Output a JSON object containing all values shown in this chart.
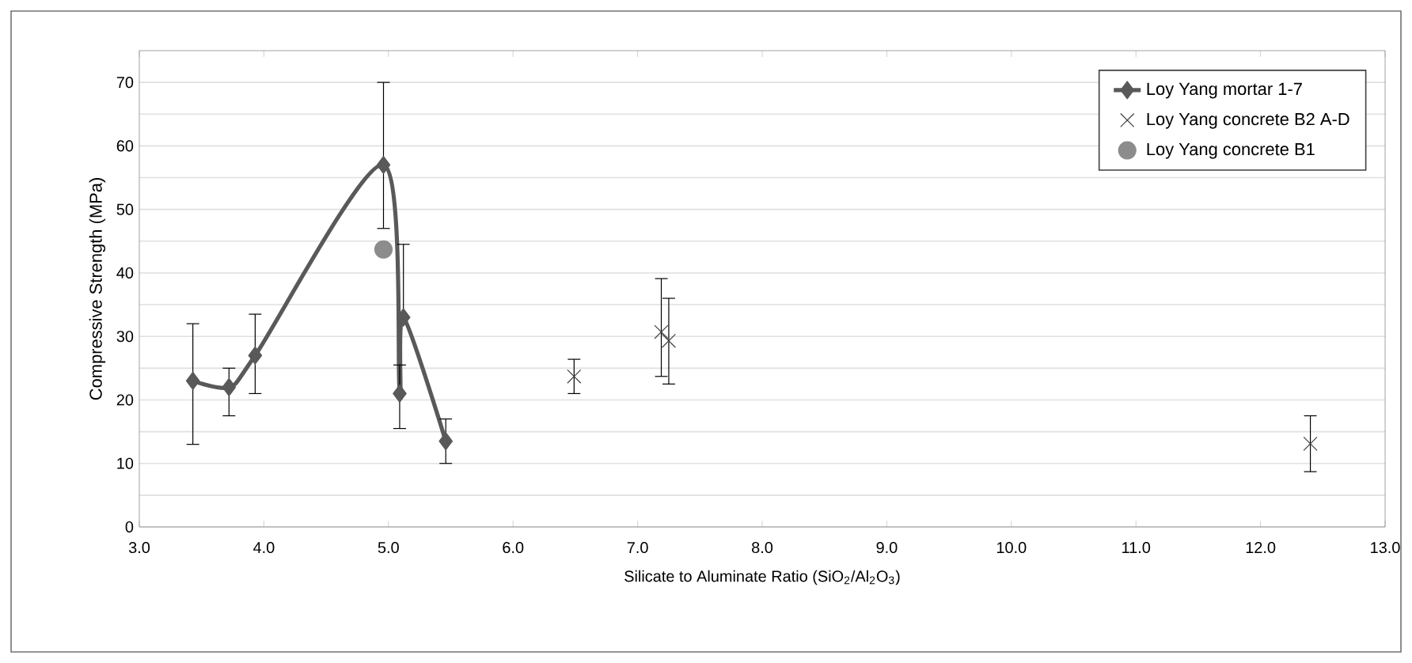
{
  "chart_data": {
    "type": "scatter",
    "xlabel": "Silicate to Aluminate Ratio (SiO$_{2}$/Al$_{2}$O$_{3}$)",
    "ylabel": "Compressive Strength (MPa)",
    "xlim": [
      3,
      13
    ],
    "ylim": [
      0,
      75
    ],
    "xticks": [
      {
        "value": 3,
        "label": "3.0"
      },
      {
        "value": 4,
        "label": "4.0"
      },
      {
        "value": 5,
        "label": "5.0"
      },
      {
        "value": 6,
        "label": "6.0"
      },
      {
        "value": 7,
        "label": "7.0"
      },
      {
        "value": 8,
        "label": "8.0"
      },
      {
        "value": 9,
        "label": "9.0"
      },
      {
        "value": 10,
        "label": "10.0"
      },
      {
        "value": 11,
        "label": "11.0"
      },
      {
        "value": 12,
        "label": "12.0"
      },
      {
        "value": 13,
        "label": "13.0"
      }
    ],
    "yticks": [
      0,
      {
        "value": 5,
        "label": null
      },
      10,
      {
        "value": 15,
        "label": null
      },
      20,
      {
        "value": 25,
        "label": null
      },
      30,
      {
        "value": 35,
        "label": null
      },
      40,
      {
        "value": 45,
        "label": null
      },
      50,
      {
        "value": 55,
        "label": null
      },
      60,
      {
        "value": 65,
        "label": null
      },
      70
    ],
    "grid": "y",
    "legend": "top right",
    "series": [
      {
        "name": "Loy Yang mortar 1-7",
        "type": "line",
        "marker": "diamond",
        "color": "#595959",
        "x": [
          3.43,
          3.72,
          3.93,
          4.96,
          5.09,
          5.12,
          5.46
        ],
        "values": [
          23,
          22,
          27,
          57,
          21,
          33,
          13.5
        ],
        "errors": [
          [
            13,
            32
          ],
          [
            17.5,
            25
          ],
          [
            21,
            33.5
          ],
          [
            47,
            70
          ],
          [
            15.5,
            25.5
          ],
          [
            33,
            44.5
          ],
          [
            10,
            17
          ]
        ]
      },
      {
        "name": "Loy Yang concrete B2 A-D",
        "marker": "cross",
        "color": "#404040",
        "x": [
          6.49,
          7.19,
          7.25,
          12.4
        ],
        "values": [
          23.7,
          30.7,
          29.3,
          13.1
        ],
        "errors": [
          [
            21,
            26.4
          ],
          [
            23.7,
            39.1
          ],
          [
            22.5,
            36
          ],
          [
            8.7,
            17.5
          ]
        ]
      },
      {
        "name": "Loy Yang concrete B1",
        "marker": "circle",
        "color": "#8c8c8c",
        "x": [
          4.96
        ],
        "values": [
          43.7
        ]
      }
    ]
  }
}
